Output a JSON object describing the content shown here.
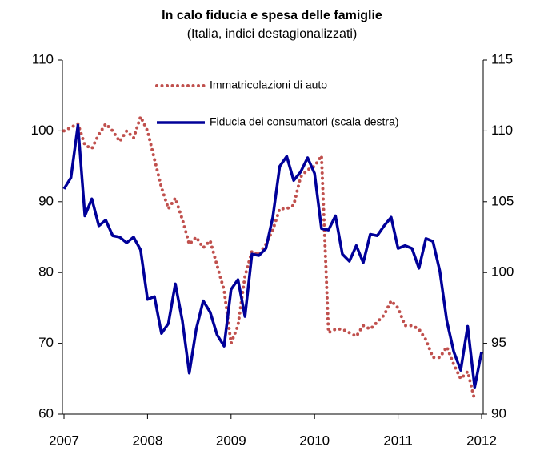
{
  "chart_data": {
    "type": "line",
    "title": "In calo fiducia e spesa delle famiglie",
    "subtitle": "(Italia, indici destagionalizzati)",
    "xlim": [
      2007,
      2012
    ],
    "xticks": [
      2007,
      2008,
      2009,
      2010,
      2011,
      2012
    ],
    "ylim": [
      60,
      110
    ],
    "yticks": [
      60,
      70,
      80,
      90,
      100,
      110
    ],
    "y2lim": [
      90,
      115
    ],
    "y2ticks": [
      90,
      95,
      100,
      105,
      110,
      115
    ],
    "series": [
      {
        "name": "Immatricolazioni di auto",
        "color": "#c0504d",
        "style": "dotted",
        "x": [
          2007,
          2007.083,
          2007.167,
          2007.25,
          2007.333,
          2007.417,
          2007.5,
          2007.583,
          2007.667,
          2007.75,
          2007.833,
          2007.917,
          2008,
          2008.083,
          2008.167,
          2008.25,
          2008.333,
          2008.417,
          2008.5,
          2008.583,
          2008.667,
          2008.75,
          2008.833,
          2008.917,
          2009,
          2009.083,
          2009.167,
          2009.25,
          2009.333,
          2009.417,
          2009.5,
          2009.583,
          2009.667,
          2009.75,
          2009.833,
          2009.917,
          2010,
          2010.083,
          2010.167,
          2010.25,
          2010.333,
          2010.417,
          2010.5,
          2010.583,
          2010.667,
          2010.75,
          2010.833,
          2010.917,
          2011,
          2011.083,
          2011.167,
          2011.25,
          2011.333,
          2011.417,
          2011.5,
          2011.583,
          2011.667,
          2011.75,
          2011.833,
          2011.917
        ],
        "values": [
          100,
          100.5,
          101,
          98,
          97.5,
          99.5,
          101,
          100,
          98.5,
          100,
          99,
          102,
          100,
          96,
          92,
          89,
          90.5,
          87.5,
          84,
          85,
          83.5,
          84.5,
          81,
          77.5,
          70,
          72.5,
          79.5,
          83,
          82.5,
          84,
          86,
          89,
          89,
          89.5,
          93.5,
          94.5,
          95,
          96.5,
          71.5,
          72,
          72,
          71.5,
          71,
          72.5,
          72,
          73,
          74,
          76,
          75,
          72.5,
          72.5,
          72,
          70.5,
          68,
          68,
          69.5,
          67,
          65,
          66,
          62
        ]
      },
      {
        "name": "Fiducia dei consumatori (scala destra)",
        "color": "#000099",
        "style": "solid",
        "axis": "y2",
        "x": [
          2007,
          2007.083,
          2007.167,
          2007.25,
          2007.333,
          2007.417,
          2007.5,
          2007.583,
          2007.667,
          2007.75,
          2007.833,
          2007.917,
          2008,
          2008.083,
          2008.167,
          2008.25,
          2008.333,
          2008.417,
          2008.5,
          2008.583,
          2008.667,
          2008.75,
          2008.833,
          2008.917,
          2009,
          2009.083,
          2009.167,
          2009.25,
          2009.333,
          2009.417,
          2009.5,
          2009.583,
          2009.667,
          2009.75,
          2009.833,
          2009.917,
          2010,
          2010.083,
          2010.167,
          2010.25,
          2010.333,
          2010.417,
          2010.5,
          2010.583,
          2010.667,
          2010.75,
          2010.833,
          2010.917,
          2011,
          2011.083,
          2011.167,
          2011.25,
          2011.333,
          2011.417,
          2011.5,
          2011.583,
          2011.667,
          2011.75,
          2011.833,
          2011.917,
          2012
        ],
        "values": [
          105.9,
          106.7,
          110.4,
          104,
          105.2,
          103.3,
          103.7,
          102.6,
          102.5,
          102.1,
          102.5,
          101.6,
          98.1,
          98.3,
          95.7,
          96.4,
          99.2,
          96.6,
          92.9,
          96,
          98,
          97.2,
          95.6,
          94.8,
          98.8,
          99.5,
          96.9,
          101.3,
          101.2,
          101.7,
          103.9,
          107.5,
          108.2,
          106.5,
          107.1,
          108.1,
          107,
          103.1,
          103,
          104,
          101.3,
          100.8,
          101.9,
          100.7,
          102.7,
          102.6,
          103.3,
          103.9,
          101.7,
          101.9,
          101.7,
          100.3,
          102.4,
          102.2,
          100.1,
          96.6,
          94.4,
          93.1,
          96.2,
          91.9,
          94.4
        ]
      }
    ]
  }
}
